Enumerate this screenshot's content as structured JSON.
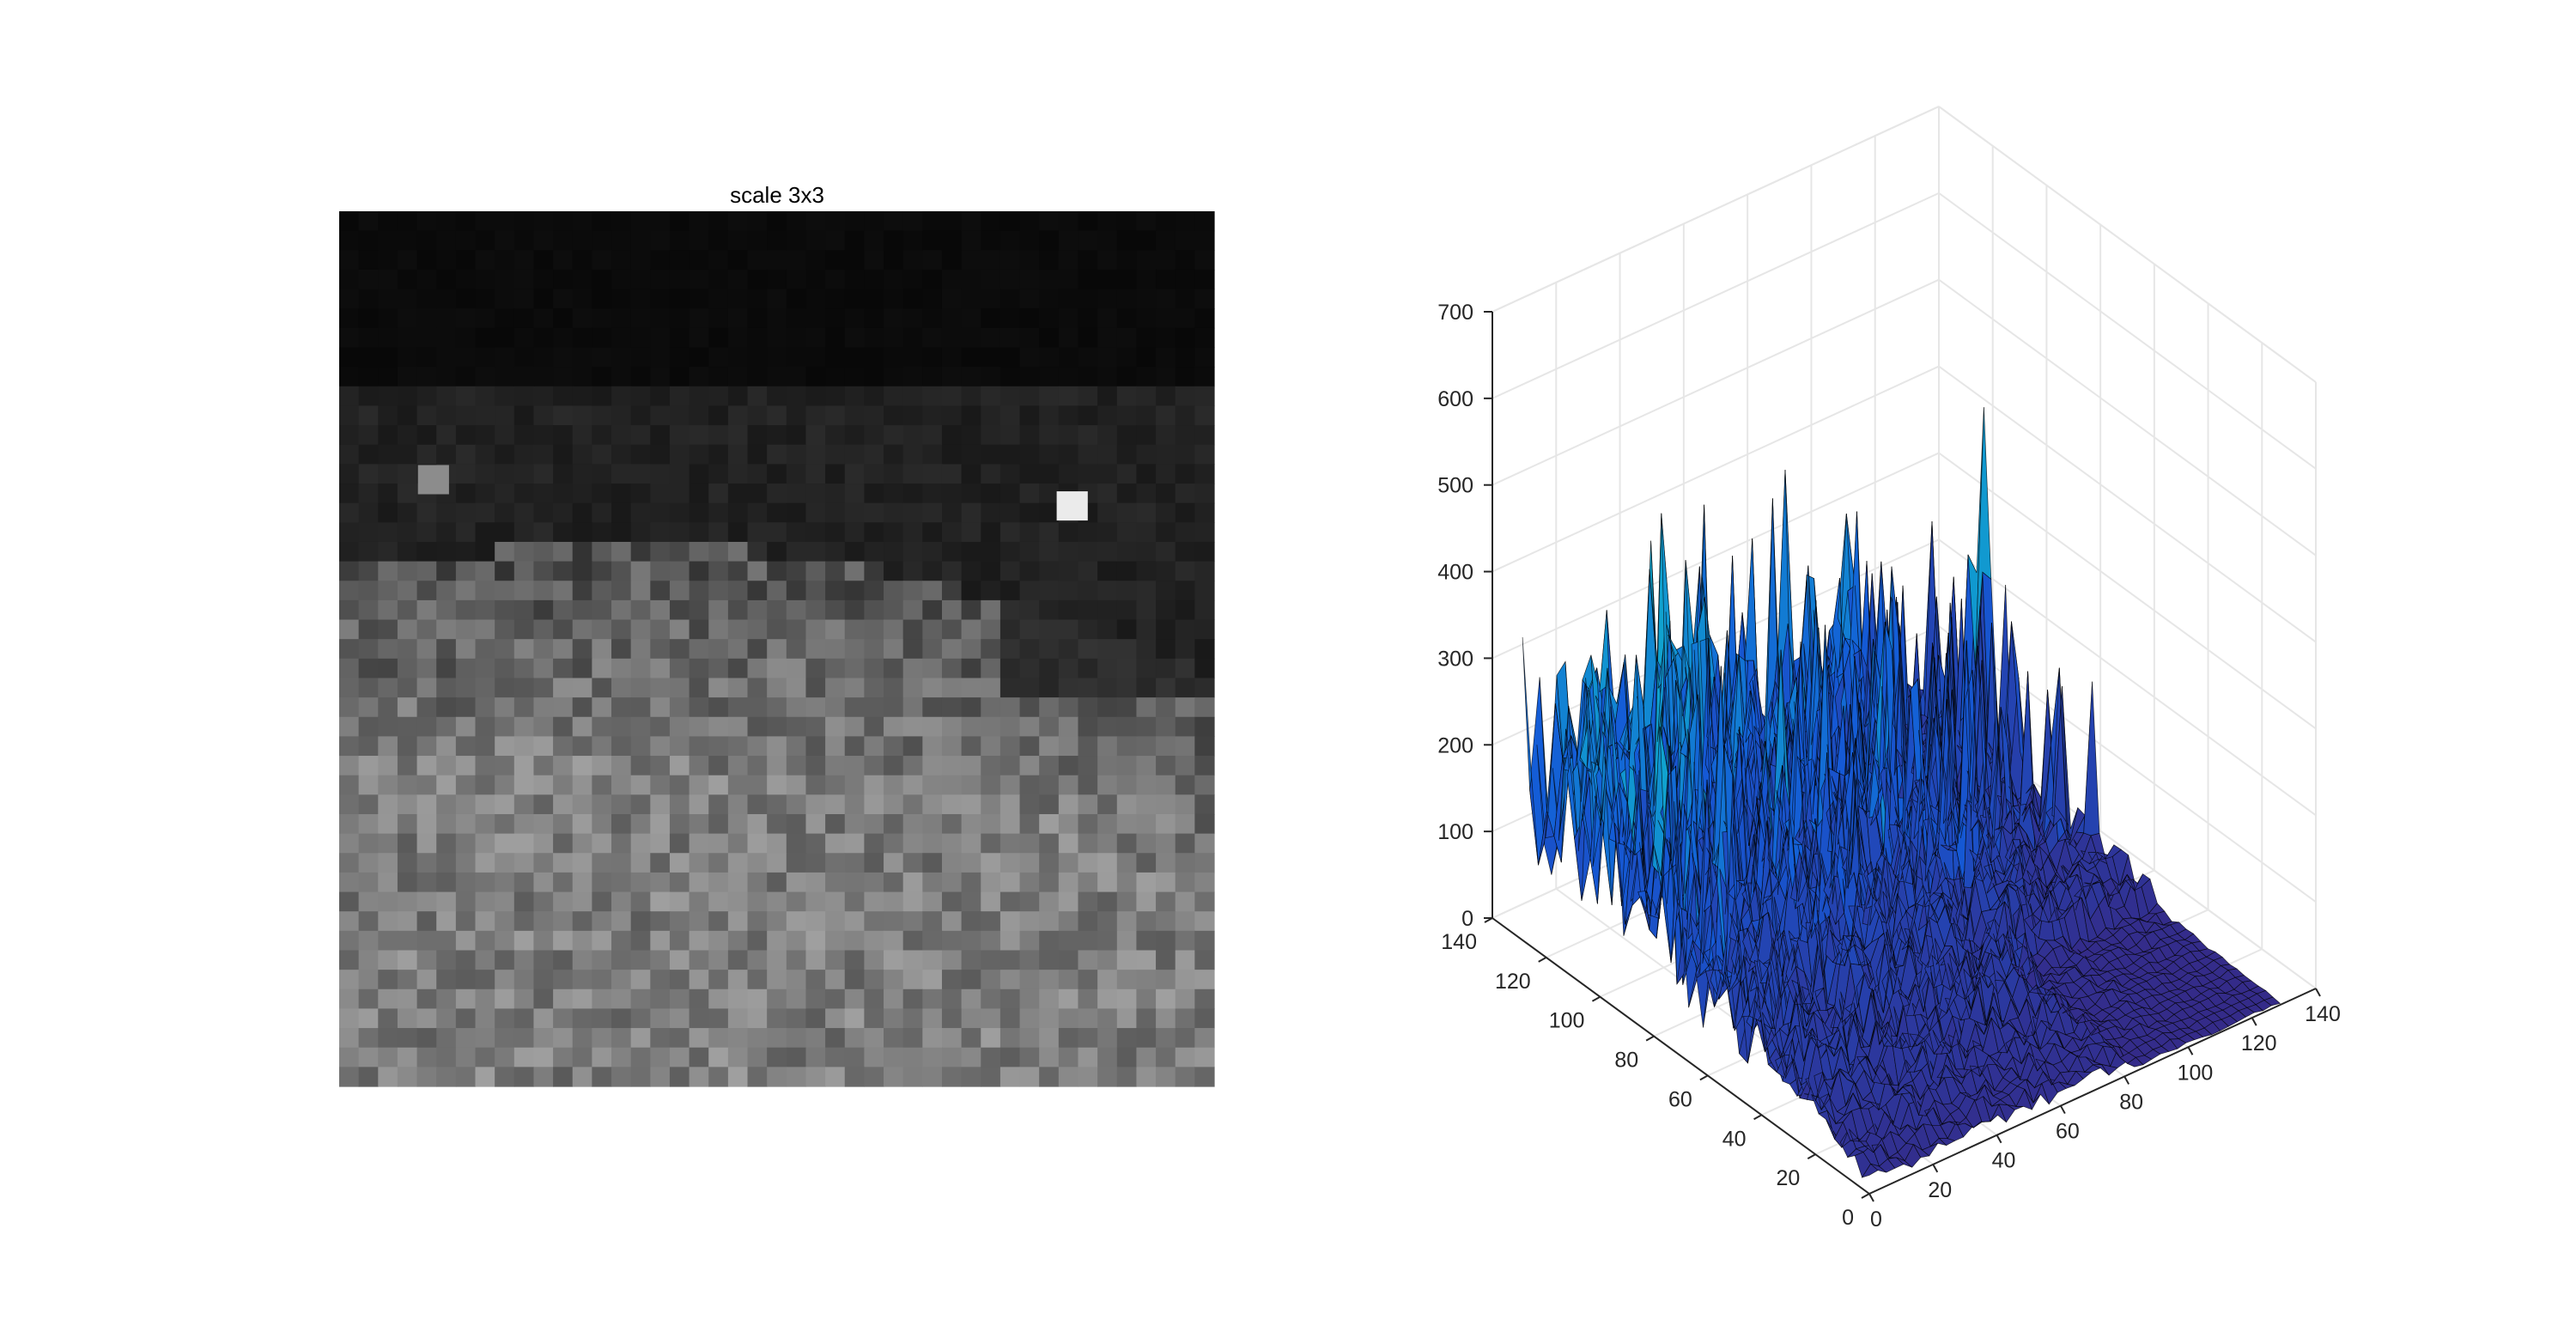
{
  "figure": {
    "background": "#ffffff",
    "panel_count": 2
  },
  "chart_data": [
    {
      "type": "heatmap",
      "colormap": "gray",
      "title": "scale 3x3",
      "axes_visible": false,
      "grid_size": [
        45,
        45
      ],
      "description_of_content": "blocky grayscale texture: dark band at top, mottled medium-gray texture in lower two thirds, a bright pixel on the right of the upper region"
    },
    {
      "type": "surface",
      "colormap": "parula",
      "edge_color": "#000000",
      "grid": true,
      "x_ticks": [
        0,
        20,
        40,
        60,
        80,
        100,
        120,
        140
      ],
      "y_ticks": [
        0,
        20,
        40,
        60,
        80,
        100,
        120,
        140
      ],
      "z_ticks": [
        0,
        100,
        200,
        300,
        400,
        500,
        600,
        700
      ],
      "xlim": [
        0,
        140
      ],
      "ylim": [
        0,
        140
      ],
      "zlim": [
        0,
        700
      ],
      "peak": {
        "x": 130,
        "y": 110,
        "z": 610
      },
      "typical_high_ridge_z": 330
    }
  ]
}
